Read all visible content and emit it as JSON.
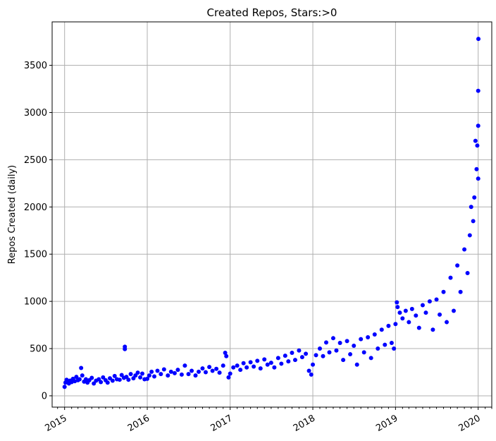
{
  "chart_data": {
    "type": "scatter",
    "title": "Created Repos, Stars:>0",
    "xlabel": "",
    "ylabel": "Repos Created (daily)",
    "x_axis": "date",
    "xlim": [
      "2014-11-07",
      "2020-03-01"
    ],
    "ylim": [
      -120,
      3960
    ],
    "xticks": [
      {
        "value": "2015-01-01",
        "label": "2015"
      },
      {
        "value": "2016-01-01",
        "label": "2016"
      },
      {
        "value": "2017-01-01",
        "label": "2017"
      },
      {
        "value": "2018-01-01",
        "label": "2018"
      },
      {
        "value": "2019-01-01",
        "label": "2019"
      },
      {
        "value": "2020-01-01",
        "label": "2020"
      }
    ],
    "yticks": [
      0,
      500,
      1000,
      1500,
      2000,
      2500,
      3000,
      3500
    ],
    "grid": true,
    "marker_color": "#0000ff",
    "series": [
      {
        "points": [
          [
            "2015-01-01",
            95
          ],
          [
            "2015-01-05",
            140
          ],
          [
            "2015-01-10",
            170
          ],
          [
            "2015-01-15",
            150
          ],
          [
            "2015-01-20",
            130
          ],
          [
            "2015-01-25",
            160
          ],
          [
            "2015-02-01",
            145
          ],
          [
            "2015-02-07",
            180
          ],
          [
            "2015-02-15",
            155
          ],
          [
            "2015-02-22",
            200
          ],
          [
            "2015-03-01",
            165
          ],
          [
            "2015-03-08",
            175
          ],
          [
            "2015-03-15",
            295
          ],
          [
            "2015-03-20",
            215
          ],
          [
            "2015-03-28",
            150
          ],
          [
            "2015-04-05",
            175
          ],
          [
            "2015-04-12",
            140
          ],
          [
            "2015-04-20",
            165
          ],
          [
            "2015-05-01",
            190
          ],
          [
            "2015-05-10",
            130
          ],
          [
            "2015-05-20",
            160
          ],
          [
            "2015-06-01",
            175
          ],
          [
            "2015-06-10",
            145
          ],
          [
            "2015-06-20",
            195
          ],
          [
            "2015-07-01",
            165
          ],
          [
            "2015-07-10",
            140
          ],
          [
            "2015-07-20",
            185
          ],
          [
            "2015-08-01",
            160
          ],
          [
            "2015-08-10",
            210
          ],
          [
            "2015-08-20",
            175
          ],
          [
            "2015-09-01",
            170
          ],
          [
            "2015-09-10",
            220
          ],
          [
            "2015-09-20",
            190
          ],
          [
            "2015-09-24",
            520
          ],
          [
            "2015-09-24",
            495
          ],
          [
            "2015-10-01",
            200
          ],
          [
            "2015-10-10",
            170
          ],
          [
            "2015-10-20",
            230
          ],
          [
            "2015-11-01",
            185
          ],
          [
            "2015-11-10",
            215
          ],
          [
            "2015-11-20",
            245
          ],
          [
            "2015-12-01",
            195
          ],
          [
            "2015-12-10",
            235
          ],
          [
            "2015-12-20",
            175
          ],
          [
            "2016-01-01",
            180
          ],
          [
            "2016-01-10",
            215
          ],
          [
            "2016-01-20",
            255
          ],
          [
            "2016-02-01",
            205
          ],
          [
            "2016-02-15",
            265
          ],
          [
            "2016-03-01",
            230
          ],
          [
            "2016-03-15",
            280
          ],
          [
            "2016-04-01",
            215
          ],
          [
            "2016-04-15",
            255
          ],
          [
            "2016-05-01",
            240
          ],
          [
            "2016-05-15",
            275
          ],
          [
            "2016-06-01",
            225
          ],
          [
            "2016-06-15",
            320
          ],
          [
            "2016-07-01",
            230
          ],
          [
            "2016-07-15",
            265
          ],
          [
            "2016-08-01",
            215
          ],
          [
            "2016-08-15",
            255
          ],
          [
            "2016-09-01",
            290
          ],
          [
            "2016-09-15",
            250
          ],
          [
            "2016-10-01",
            305
          ],
          [
            "2016-10-15",
            265
          ],
          [
            "2016-11-01",
            285
          ],
          [
            "2016-11-15",
            245
          ],
          [
            "2016-12-01",
            320
          ],
          [
            "2016-12-10",
            455
          ],
          [
            "2016-12-15",
            420
          ],
          [
            "2016-12-25",
            195
          ],
          [
            "2017-01-01",
            235
          ],
          [
            "2017-01-15",
            300
          ],
          [
            "2017-02-01",
            320
          ],
          [
            "2017-02-15",
            275
          ],
          [
            "2017-03-01",
            345
          ],
          [
            "2017-03-15",
            300
          ],
          [
            "2017-04-01",
            355
          ],
          [
            "2017-04-15",
            310
          ],
          [
            "2017-05-01",
            370
          ],
          [
            "2017-05-15",
            290
          ],
          [
            "2017-06-01",
            385
          ],
          [
            "2017-06-15",
            330
          ],
          [
            "2017-07-01",
            350
          ],
          [
            "2017-07-15",
            300
          ],
          [
            "2017-08-01",
            400
          ],
          [
            "2017-08-15",
            340
          ],
          [
            "2017-09-01",
            425
          ],
          [
            "2017-09-15",
            365
          ],
          [
            "2017-10-01",
            455
          ],
          [
            "2017-10-15",
            380
          ],
          [
            "2017-11-01",
            480
          ],
          [
            "2017-11-15",
            410
          ],
          [
            "2017-12-01",
            445
          ],
          [
            "2017-12-15",
            265
          ],
          [
            "2017-12-25",
            225
          ],
          [
            "2018-01-01",
            330
          ],
          [
            "2018-01-15",
            430
          ],
          [
            "2018-02-01",
            500
          ],
          [
            "2018-02-15",
            420
          ],
          [
            "2018-03-01",
            565
          ],
          [
            "2018-03-15",
            460
          ],
          [
            "2018-04-01",
            610
          ],
          [
            "2018-04-15",
            480
          ],
          [
            "2018-05-01",
            560
          ],
          [
            "2018-05-15",
            380
          ],
          [
            "2018-06-01",
            580
          ],
          [
            "2018-06-15",
            440
          ],
          [
            "2018-07-01",
            530
          ],
          [
            "2018-07-15",
            330
          ],
          [
            "2018-08-01",
            600
          ],
          [
            "2018-08-15",
            460
          ],
          [
            "2018-09-01",
            620
          ],
          [
            "2018-09-15",
            400
          ],
          [
            "2018-10-01",
            650
          ],
          [
            "2018-10-15",
            500
          ],
          [
            "2018-11-01",
            700
          ],
          [
            "2018-11-15",
            540
          ],
          [
            "2018-12-01",
            740
          ],
          [
            "2018-12-15",
            560
          ],
          [
            "2018-12-25",
            500
          ],
          [
            "2019-01-01",
            760
          ],
          [
            "2019-01-07",
            990
          ],
          [
            "2019-01-10",
            940
          ],
          [
            "2019-01-20",
            880
          ],
          [
            "2019-02-01",
            820
          ],
          [
            "2019-02-15",
            900
          ],
          [
            "2019-03-01",
            780
          ],
          [
            "2019-03-15",
            920
          ],
          [
            "2019-04-01",
            850
          ],
          [
            "2019-04-15",
            720
          ],
          [
            "2019-05-01",
            960
          ],
          [
            "2019-05-15",
            880
          ],
          [
            "2019-06-01",
            1000
          ],
          [
            "2019-06-15",
            700
          ],
          [
            "2019-07-01",
            1020
          ],
          [
            "2019-07-15",
            860
          ],
          [
            "2019-08-01",
            1100
          ],
          [
            "2019-08-15",
            780
          ],
          [
            "2019-09-01",
            1250
          ],
          [
            "2019-09-15",
            900
          ],
          [
            "2019-10-01",
            1380
          ],
          [
            "2019-10-15",
            1100
          ],
          [
            "2019-11-01",
            1550
          ],
          [
            "2019-11-15",
            1300
          ],
          [
            "2019-11-25",
            1700
          ],
          [
            "2019-12-01",
            2000
          ],
          [
            "2019-12-10",
            1850
          ],
          [
            "2019-12-15",
            2100
          ],
          [
            "2019-12-20",
            2700
          ],
          [
            "2019-12-25",
            2400
          ],
          [
            "2019-12-28",
            2650
          ],
          [
            "2020-01-01",
            2860
          ],
          [
            "2020-01-01",
            3230
          ],
          [
            "2020-01-02",
            3780
          ],
          [
            "2020-01-01",
            2300
          ]
        ]
      }
    ]
  }
}
